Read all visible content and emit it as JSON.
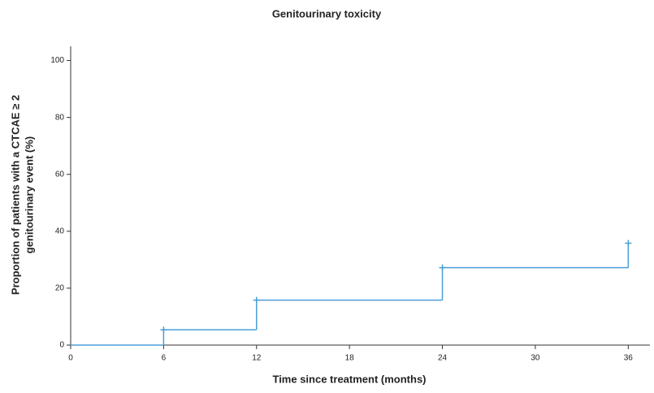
{
  "chart_data": {
    "type": "step",
    "title": "Genitourinary toxicity",
    "xlabel": "Time since treatment (months)",
    "ylabel": [
      "Proportion of patients with a CTCAE ≥ 2",
      "genitourinary event (%)"
    ],
    "x": [
      0,
      6,
      12,
      24,
      36
    ],
    "values": [
      0,
      5.4,
      15.8,
      27.2,
      35.8
    ],
    "censored": [
      false,
      true,
      true,
      true,
      true
    ],
    "color": "#4a9fd8",
    "xlim": [
      0,
      37.4
    ],
    "xticks": [
      0,
      6,
      12,
      18,
      24,
      30,
      36
    ],
    "ylim": [
      0,
      105
    ],
    "yticks": [
      0,
      20,
      40,
      60,
      80,
      100
    ],
    "grid": false
  }
}
